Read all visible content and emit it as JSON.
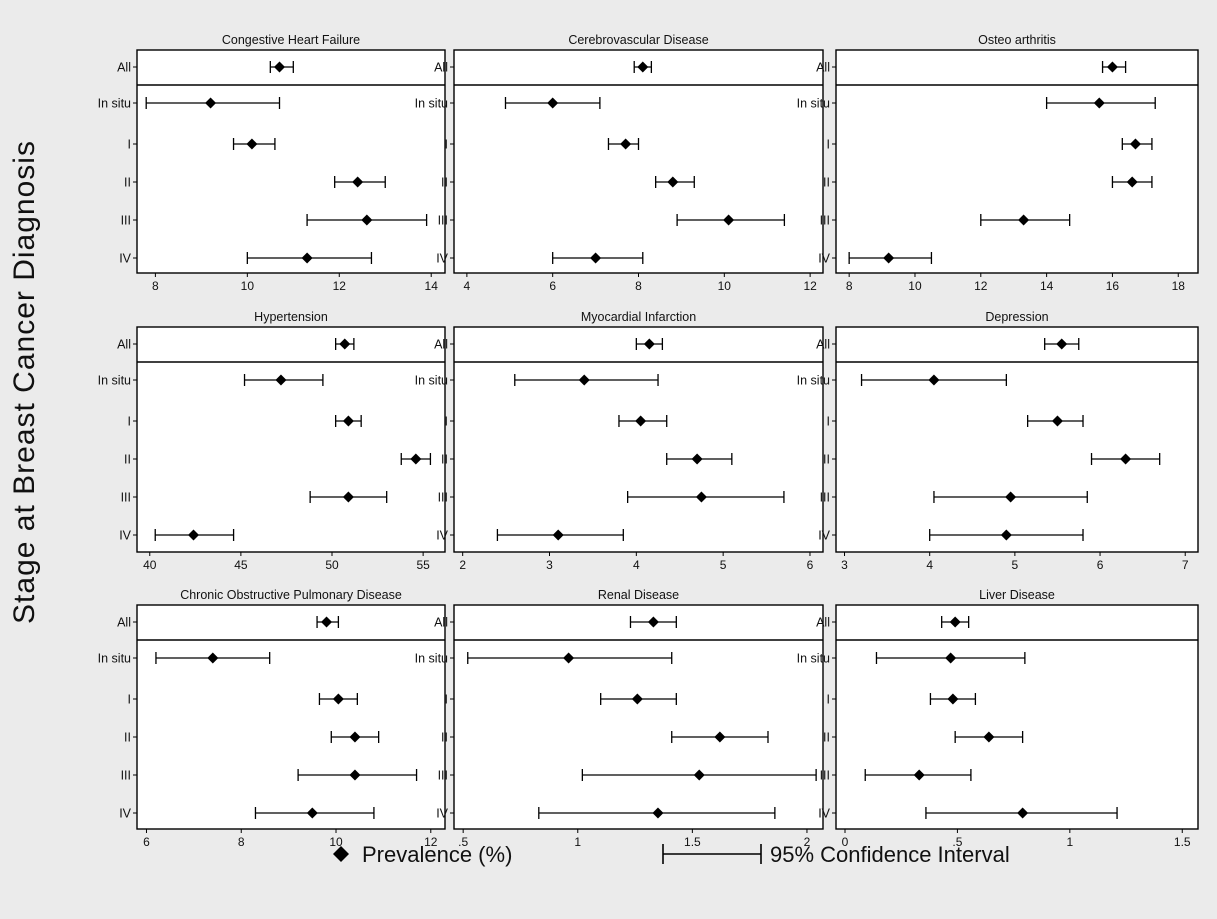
{
  "figure": {
    "y_axis_title": "Stage at Breast Cancer Diagnosis",
    "categories": [
      "All",
      "In situ",
      "I",
      "II",
      "III",
      "IV"
    ],
    "legend": {
      "point_label": "Prevalence (%)",
      "ci_label": "95% Confidence Interval"
    }
  },
  "chart_data": [
    {
      "type": "scatter",
      "title": "Congestive Heart Failure",
      "categories": [
        "All",
        "In situ",
        "I",
        "II",
        "III",
        "IV"
      ],
      "points": [
        {
          "est": 10.7,
          "lo": 10.5,
          "hi": 11.0
        },
        {
          "est": 9.2,
          "lo": 7.8,
          "hi": 10.7
        },
        {
          "est": 10.1,
          "lo": 9.7,
          "hi": 10.6
        },
        {
          "est": 12.4,
          "lo": 11.9,
          "hi": 13.0
        },
        {
          "est": 12.6,
          "lo": 11.3,
          "hi": 13.9
        },
        {
          "est": 11.3,
          "lo": 10.0,
          "hi": 12.7
        }
      ],
      "xlim": [
        7.6,
        14.3
      ],
      "xticks": [
        8,
        10,
        12,
        14
      ],
      "xtick_labels": [
        "8",
        "10",
        "12",
        "14"
      ]
    },
    {
      "type": "scatter",
      "title": "Cerebrovascular Disease",
      "categories": [
        "All",
        "In situ",
        "I",
        "II",
        "III",
        "IV"
      ],
      "points": [
        {
          "est": 8.1,
          "lo": 7.9,
          "hi": 8.3
        },
        {
          "est": 6.0,
          "lo": 4.9,
          "hi": 7.1
        },
        {
          "est": 7.7,
          "lo": 7.3,
          "hi": 8.0
        },
        {
          "est": 8.8,
          "lo": 8.4,
          "hi": 9.3
        },
        {
          "est": 10.1,
          "lo": 8.9,
          "hi": 11.4
        },
        {
          "est": 7.0,
          "lo": 6.0,
          "hi": 8.1
        }
      ],
      "xlim": [
        3.7,
        12.3
      ],
      "xticks": [
        4,
        6,
        8,
        10,
        12
      ],
      "xtick_labels": [
        "4",
        "6",
        "8",
        "10",
        "12"
      ]
    },
    {
      "type": "scatter",
      "title": "Osteo arthritis",
      "categories": [
        "All",
        "In situ",
        "I",
        "II",
        "III",
        "IV"
      ],
      "points": [
        {
          "est": 16.0,
          "lo": 15.7,
          "hi": 16.4
        },
        {
          "est": 15.6,
          "lo": 14.0,
          "hi": 17.3
        },
        {
          "est": 16.7,
          "lo": 16.3,
          "hi": 17.2
        },
        {
          "est": 16.6,
          "lo": 16.0,
          "hi": 17.2
        },
        {
          "est": 13.3,
          "lo": 12.0,
          "hi": 14.7
        },
        {
          "est": 9.2,
          "lo": 8.0,
          "hi": 10.5
        }
      ],
      "xlim": [
        7.6,
        18.6
      ],
      "xticks": [
        8,
        10,
        12,
        14,
        16,
        18
      ],
      "xtick_labels": [
        "8",
        "10",
        "12",
        "14",
        "16",
        "18"
      ]
    },
    {
      "type": "scatter",
      "title": "Hypertension",
      "categories": [
        "All",
        "In situ",
        "I",
        "II",
        "III",
        "IV"
      ],
      "points": [
        {
          "est": 50.7,
          "lo": 50.2,
          "hi": 51.2
        },
        {
          "est": 47.2,
          "lo": 45.2,
          "hi": 49.5
        },
        {
          "est": 50.9,
          "lo": 50.2,
          "hi": 51.6
        },
        {
          "est": 54.6,
          "lo": 53.8,
          "hi": 55.4
        },
        {
          "est": 50.9,
          "lo": 48.8,
          "hi": 53.0
        },
        {
          "est": 42.4,
          "lo": 40.3,
          "hi": 44.6
        }
      ],
      "xlim": [
        39.3,
        56.2
      ],
      "xticks": [
        40,
        45,
        50,
        55
      ],
      "xtick_labels": [
        "40",
        "45",
        "50",
        "55"
      ]
    },
    {
      "type": "scatter",
      "title": "Myocardial Infarction",
      "categories": [
        "All",
        "In situ",
        "I",
        "II",
        "III",
        "IV"
      ],
      "points": [
        {
          "est": 4.15,
          "lo": 4.0,
          "hi": 4.3
        },
        {
          "est": 3.4,
          "lo": 2.6,
          "hi": 4.25
        },
        {
          "est": 4.05,
          "lo": 3.8,
          "hi": 4.35
        },
        {
          "est": 4.7,
          "lo": 4.35,
          "hi": 5.1
        },
        {
          "est": 4.75,
          "lo": 3.9,
          "hi": 5.7
        },
        {
          "est": 3.1,
          "lo": 2.4,
          "hi": 3.85
        }
      ],
      "xlim": [
        1.9,
        6.15
      ],
      "xticks": [
        2,
        3,
        4,
        5,
        6
      ],
      "xtick_labels": [
        "2",
        "3",
        "4",
        "5",
        "6"
      ]
    },
    {
      "type": "scatter",
      "title": "Depression",
      "categories": [
        "All",
        "In situ",
        "I",
        "II",
        "III",
        "IV"
      ],
      "points": [
        {
          "est": 5.55,
          "lo": 5.35,
          "hi": 5.75
        },
        {
          "est": 4.05,
          "lo": 3.2,
          "hi": 4.9
        },
        {
          "est": 5.5,
          "lo": 5.15,
          "hi": 5.8
        },
        {
          "est": 6.3,
          "lo": 5.9,
          "hi": 6.7
        },
        {
          "est": 4.95,
          "lo": 4.05,
          "hi": 5.85
        },
        {
          "est": 4.9,
          "lo": 4.0,
          "hi": 5.8
        }
      ],
      "xlim": [
        2.9,
        7.15
      ],
      "xticks": [
        3,
        4,
        5,
        6,
        7
      ],
      "xtick_labels": [
        "3",
        "4",
        "5",
        "6",
        "7"
      ]
    },
    {
      "type": "scatter",
      "title": "Chronic Obstructive Pulmonary Disease",
      "categories": [
        "All",
        "In situ",
        "I",
        "II",
        "III",
        "IV"
      ],
      "points": [
        {
          "est": 9.8,
          "lo": 9.6,
          "hi": 10.05
        },
        {
          "est": 7.4,
          "lo": 6.2,
          "hi": 8.6
        },
        {
          "est": 10.05,
          "lo": 9.65,
          "hi": 10.45
        },
        {
          "est": 10.4,
          "lo": 9.9,
          "hi": 10.9
        },
        {
          "est": 10.4,
          "lo": 9.2,
          "hi": 11.7
        },
        {
          "est": 9.5,
          "lo": 8.3,
          "hi": 10.8
        }
      ],
      "xlim": [
        5.8,
        12.3
      ],
      "xticks": [
        6,
        8,
        10,
        12
      ],
      "xtick_labels": [
        "6",
        "8",
        "10",
        "12"
      ]
    },
    {
      "type": "scatter",
      "title": "Renal Disease",
      "categories": [
        "All",
        "In situ",
        "I",
        "II",
        "III",
        "IV"
      ],
      "points": [
        {
          "est": 1.33,
          "lo": 1.23,
          "hi": 1.43
        },
        {
          "est": 0.96,
          "lo": 0.52,
          "hi": 1.41
        },
        {
          "est": 1.26,
          "lo": 1.1,
          "hi": 1.43
        },
        {
          "est": 1.62,
          "lo": 1.41,
          "hi": 1.83
        },
        {
          "est": 1.53,
          "lo": 1.02,
          "hi": 2.04
        },
        {
          "est": 1.35,
          "lo": 0.83,
          "hi": 1.86
        }
      ],
      "xlim": [
        0.46,
        2.07
      ],
      "xticks": [
        0.5,
        1,
        1.5,
        2
      ],
      "xtick_labels": [
        ".5",
        "1",
        "1.5",
        "2"
      ]
    },
    {
      "type": "scatter",
      "title": "Liver Disease",
      "categories": [
        "All",
        "In situ",
        "I",
        "II",
        "III",
        "IV"
      ],
      "points": [
        {
          "est": 0.49,
          "lo": 0.43,
          "hi": 0.55
        },
        {
          "est": 0.47,
          "lo": 0.14,
          "hi": 0.8
        },
        {
          "est": 0.48,
          "lo": 0.38,
          "hi": 0.58
        },
        {
          "est": 0.64,
          "lo": 0.49,
          "hi": 0.79
        },
        {
          "est": 0.33,
          "lo": 0.09,
          "hi": 0.56
        },
        {
          "est": 0.79,
          "lo": 0.36,
          "hi": 1.21
        }
      ],
      "xlim": [
        -0.04,
        1.57
      ],
      "xticks": [
        0,
        0.5,
        1,
        1.5
      ],
      "xtick_labels": [
        "0",
        ".5",
        "1",
        "1.5"
      ]
    }
  ]
}
